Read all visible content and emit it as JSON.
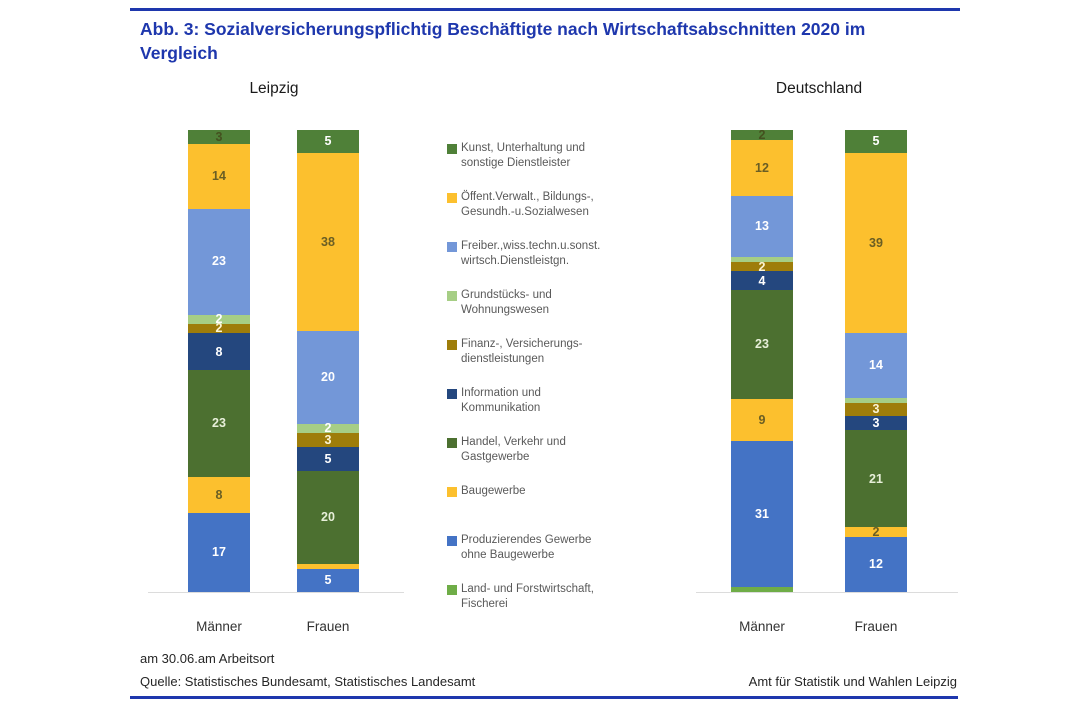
{
  "title": "Abb. 3: Sozialversicherungspflichtig Beschäftigte nach Wirtschaftsabschnitten 2020 im Vergleich",
  "footnote": "am 30.06.am Arbeitsort",
  "source_left": "Quelle: Statistisches Bundesamt, Statistisches Landesamt",
  "source_right": "Amt für Statistik und Wahlen Leipzig",
  "colors": {
    "accent": "#1e37ad",
    "label_dark_on_yellow": "#6a5e24",
    "label_dark_on_green": "#44511f",
    "label_cream": "#fcf5d5",
    "label_pale_green": "#e7efd9",
    "label_white": "#ffffff"
  },
  "chart_data": {
    "type": "bar",
    "subtype": "100%-stacked-column",
    "unit": "percent",
    "segment_order_note": "segments listed bottom-to-top",
    "legend_position": "center-between-groups",
    "legend": [
      {
        "key": "kunst",
        "label": "Kunst, Unterhaltung und\nsonstige Dienstleister",
        "color": "#4f8038"
      },
      {
        "key": "oeffent",
        "label": "Öffent.Verwalt., Bildungs-,\nGesundh.-u.Sozialwesen",
        "color": "#fcc02e"
      },
      {
        "key": "freiber",
        "label": "Freiber.,wiss.techn.u.sonst.\nwirtsch.Dienstleistgn.",
        "color": "#7397d8"
      },
      {
        "key": "grundstuecks",
        "label": "Grundstücks- und\nWohnungswesen",
        "color": "#a6ce85"
      },
      {
        "key": "finanz",
        "label": "Finanz-, Versicherungs-\ndienstleistungen",
        "color": "#9e7d0a"
      },
      {
        "key": "information",
        "label": "Information und\nKommunikation",
        "color": "#24477e"
      },
      {
        "key": "handel",
        "label": "Handel, Verkehr und\nGastgewerbe",
        "color": "#4c7030"
      },
      {
        "key": "baugewerbe",
        "label": "Baugewerbe",
        "color": "#fcc02e"
      },
      {
        "key": "produzierendes",
        "label": "Produzierendes Gewerbe\nohne Baugewerbe",
        "color": "#4473c5"
      },
      {
        "key": "land",
        "label": "Land- und Forstwirtschaft,\nFischerei",
        "color": "#6fad47"
      }
    ],
    "groups": [
      {
        "name": "Leipzig",
        "bars": [
          {
            "category": "Männer",
            "segments": [
              {
                "key": "produzierendes",
                "value": 17,
                "label": "17",
                "label_color": "#ffffff"
              },
              {
                "key": "baugewerbe",
                "value": 8,
                "label": "8",
                "label_color": "#6a5e24"
              },
              {
                "key": "handel",
                "value": 23,
                "label": "23",
                "label_color": "#e7efd9"
              },
              {
                "key": "information",
                "value": 8,
                "label": "8",
                "label_color": "#ffffff"
              },
              {
                "key": "finanz",
                "value": 2,
                "label": "2",
                "label_color": "#fcf5d5"
              },
              {
                "key": "grundstuecks",
                "value": 2,
                "label": "2",
                "label_color": "#ffffff"
              },
              {
                "key": "freiber",
                "value": 23,
                "label": "23",
                "label_color": "#ffffff"
              },
              {
                "key": "oeffent",
                "value": 14,
                "label": "14",
                "label_color": "#6a5e24"
              },
              {
                "key": "kunst",
                "value": 3,
                "label": "3",
                "label_color": "#44511f"
              }
            ]
          },
          {
            "category": "Frauen",
            "segments": [
              {
                "key": "produzierendes",
                "value": 5,
                "label": "5",
                "label_color": "#ffffff"
              },
              {
                "key": "baugewerbe",
                "value": 1,
                "label": "",
                "label_color": ""
              },
              {
                "key": "handel",
                "value": 20,
                "label": "20",
                "label_color": "#e7efd9"
              },
              {
                "key": "information",
                "value": 5,
                "label": "5",
                "label_color": "#ffffff"
              },
              {
                "key": "finanz",
                "value": 3,
                "label": "3",
                "label_color": "#fcf5d5"
              },
              {
                "key": "grundstuecks",
                "value": 2,
                "label": "2",
                "label_color": "#ffffff"
              },
              {
                "key": "freiber",
                "value": 20,
                "label": "20",
                "label_color": "#ffffff"
              },
              {
                "key": "oeffent",
                "value": 38,
                "label": "38",
                "label_color": "#6a5e24"
              },
              {
                "key": "kunst",
                "value": 5,
                "label": "5",
                "label_color": "#ffffff"
              }
            ]
          }
        ]
      },
      {
        "name": "Deutschland",
        "bars": [
          {
            "category": "Männer",
            "segments": [
              {
                "key": "land",
                "value": 1,
                "label": "",
                "label_color": ""
              },
              {
                "key": "produzierendes",
                "value": 31,
                "label": "31",
                "label_color": "#ffffff"
              },
              {
                "key": "baugewerbe",
                "value": 9,
                "label": "9",
                "label_color": "#6a5e24"
              },
              {
                "key": "handel",
                "value": 23,
                "label": "23",
                "label_color": "#e7efd9"
              },
              {
                "key": "information",
                "value": 4,
                "label": "4",
                "label_color": "#ffffff"
              },
              {
                "key": "finanz",
                "value": 2,
                "label": "2",
                "label_color": "#fcf5d5"
              },
              {
                "key": "grundstuecks",
                "value": 1,
                "label": "",
                "label_color": ""
              },
              {
                "key": "freiber",
                "value": 13,
                "label": "13",
                "label_color": "#ffffff"
              },
              {
                "key": "oeffent",
                "value": 12,
                "label": "12",
                "label_color": "#6a5e24"
              },
              {
                "key": "kunst",
                "value": 2,
                "label": "2",
                "label_color": "#44511f"
              }
            ]
          },
          {
            "category": "Frauen",
            "segments": [
              {
                "key": "produzierendes",
                "value": 12,
                "label": "12",
                "label_color": "#ffffff"
              },
              {
                "key": "baugewerbe",
                "value": 2,
                "label": "2",
                "label_color": "#6a5e24"
              },
              {
                "key": "handel",
                "value": 21,
                "label": "21",
                "label_color": "#e7efd9"
              },
              {
                "key": "information",
                "value": 3,
                "label": "3",
                "label_color": "#ffffff"
              },
              {
                "key": "finanz",
                "value": 3,
                "label": "3",
                "label_color": "#fcf5d5"
              },
              {
                "key": "grundstuecks",
                "value": 1,
                "label": "",
                "label_color": ""
              },
              {
                "key": "freiber",
                "value": 14,
                "label": "14",
                "label_color": "#ffffff"
              },
              {
                "key": "oeffent",
                "value": 39,
                "label": "39",
                "label_color": "#6a5e24"
              },
              {
                "key": "kunst",
                "value": 5,
                "label": "5",
                "label_color": "#ffffff"
              }
            ]
          }
        ]
      }
    ]
  }
}
